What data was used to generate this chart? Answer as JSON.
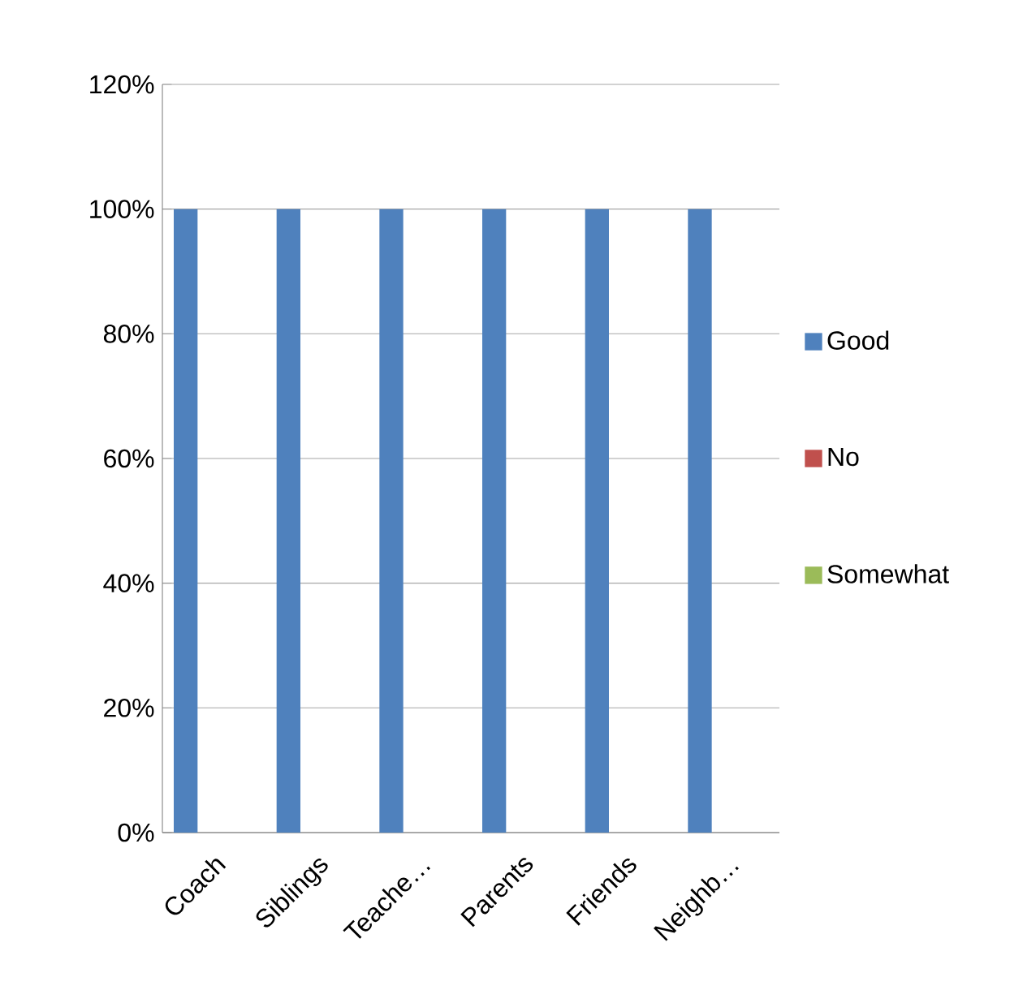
{
  "chart_data": {
    "type": "bar",
    "categories": [
      "Coach",
      "Siblings",
      "Teache…",
      "Parents",
      "Friends",
      "Neighb…"
    ],
    "series": [
      {
        "name": "Good",
        "color": "#4f81bd",
        "values": [
          100,
          100,
          100,
          100,
          100,
          100
        ]
      },
      {
        "name": "No",
        "color": "#c0504d",
        "values": [
          0,
          0,
          0,
          0,
          0,
          0
        ]
      },
      {
        "name": "Somewhat",
        "color": "#9bbb59",
        "values": [
          0,
          0,
          0,
          0,
          0,
          0
        ]
      }
    ],
    "ylim": [
      0,
      120
    ],
    "yticks": [
      {
        "value": 0,
        "label": "0%"
      },
      {
        "value": 20,
        "label": "20%"
      },
      {
        "value": 40,
        "label": "40%"
      },
      {
        "value": 60,
        "label": "60%"
      },
      {
        "value": 80,
        "label": "80%"
      },
      {
        "value": 100,
        "label": "100%"
      },
      {
        "value": 120,
        "label": "120%"
      }
    ],
    "grid": "y",
    "legend": "right"
  }
}
